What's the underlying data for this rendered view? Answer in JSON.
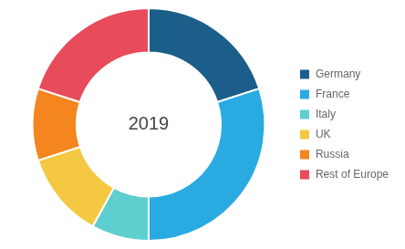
{
  "chart_data": {
    "type": "donut",
    "categories": [
      "Germany",
      "France",
      "Italy",
      "UK",
      "Russia",
      "Rest of Europe"
    ],
    "values": [
      20,
      30,
      8,
      12,
      10,
      20
    ],
    "colors": [
      "#1b5e8a",
      "#29abe2",
      "#5ecece",
      "#f5c842",
      "#f5851f",
      "#e84b5a"
    ],
    "center_text": "2019",
    "legend": "right"
  }
}
